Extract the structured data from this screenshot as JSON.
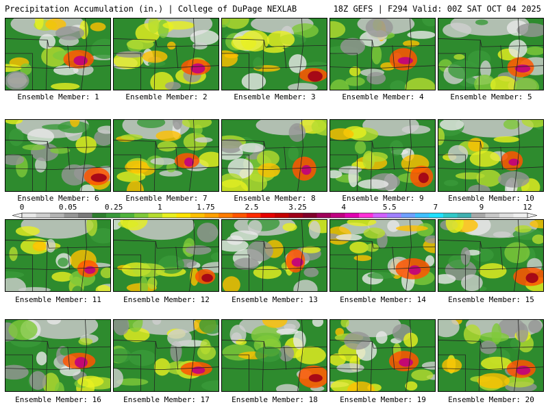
{
  "header": {
    "title": "Precipitation Accumulation (in.) | College of DuPage NEXLAB",
    "run_info": "18Z GEFS | F294 Valid: 00Z SAT OCT 04 2025"
  },
  "panel_label_prefix": "Ensemble Member: ",
  "members": [
    1,
    2,
    3,
    4,
    5,
    6,
    7,
    8,
    9,
    10,
    11,
    12,
    13,
    14,
    15,
    16,
    17,
    18,
    19,
    20
  ],
  "colorbar": {
    "tick_labels": [
      "0",
      "0.05",
      "0.25",
      "1",
      "1.75",
      "2.5",
      "3.25",
      "4",
      "5.5",
      "7",
      "9",
      "12"
    ],
    "colors": [
      "#e8e8e8",
      "#cfcfcf",
      "#b4b4b4",
      "#969696",
      "#7a7a7a",
      "#2e7d2e",
      "#3a9a3a",
      "#4fb33c",
      "#7fc93a",
      "#b5dc30",
      "#e8f020",
      "#ffe400",
      "#ffc000",
      "#ffa000",
      "#ff7c00",
      "#ff5500",
      "#ff2a00",
      "#e60000",
      "#c40000",
      "#a00018",
      "#80002a",
      "#a0005a",
      "#c00080",
      "#e000b0",
      "#ff30d8",
      "#d060ff",
      "#a080ff",
      "#6fa0ff",
      "#40c0ff",
      "#20e0ff",
      "#30c8c8",
      "#40b0b0",
      "#a8a8a8",
      "#c8c8c8",
      "#e0e0e0",
      "#f0f0f0"
    ]
  }
}
